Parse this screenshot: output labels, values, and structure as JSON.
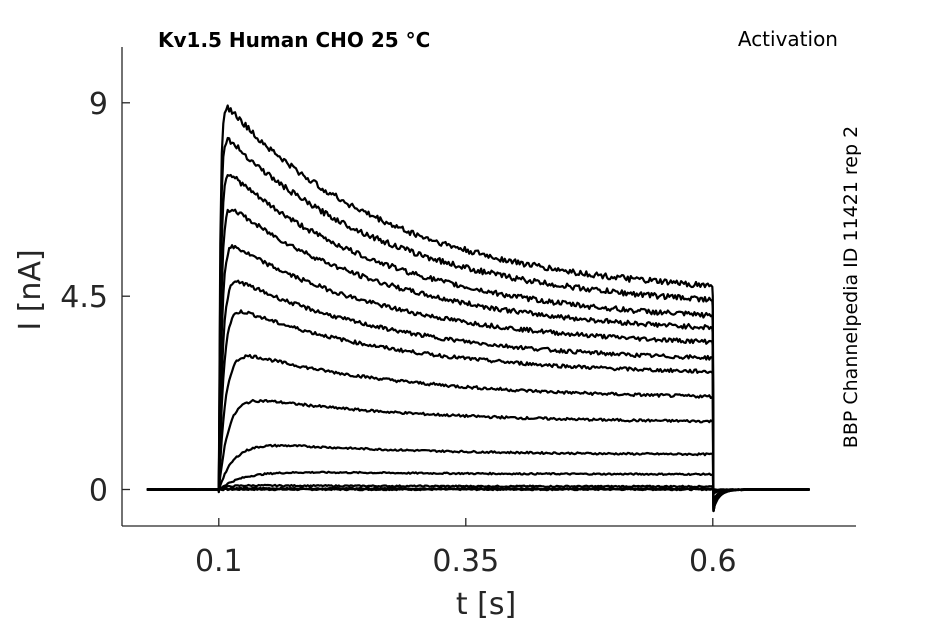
{
  "chart_data": {
    "type": "line",
    "title": "Kv1.5  Human  CHO  25 °C",
    "protocol_label": "Activation",
    "side_label": "BBP Channelpedia ID 11421 rep 2",
    "xlabel": "t [s]",
    "ylabel": "I [nA]",
    "xlim": [
      0.002,
      0.745
    ],
    "ylim": [
      -0.85,
      10.3
    ],
    "x_ticks": [
      0.1,
      0.35,
      0.6
    ],
    "x_tick_labels": [
      "0.1",
      "0.35",
      "0.6"
    ],
    "y_ticks": [
      0,
      4.5,
      9
    ],
    "y_tick_labels": [
      "0",
      "4.5",
      "9"
    ],
    "grid": false,
    "legend": "none",
    "pulse_start": 0.1,
    "pulse_end": 0.6,
    "baseline_start": 0.028,
    "trace_end": 0.7,
    "series": [
      {
        "peak": 0.0,
        "end": 0.0,
        "tau_act": 0.01,
        "tail": 0.0
      },
      {
        "peak": 0.03,
        "end": 0.02,
        "tau_act": 0.01,
        "tail": -0.05
      },
      {
        "peak": 0.1,
        "end": 0.07,
        "tau_act": 0.009,
        "tail": -0.1
      },
      {
        "peak": 0.45,
        "end": 0.35,
        "tau_act": 0.025,
        "tail": -0.25
      },
      {
        "peak": 1.15,
        "end": 0.8,
        "tau_act": 0.016,
        "tail": -0.35
      },
      {
        "peak": 2.25,
        "end": 1.55,
        "tau_act": 0.01,
        "tail": -0.4
      },
      {
        "peak": 3.35,
        "end": 2.1,
        "tau_act": 0.007,
        "tail": -0.42
      },
      {
        "peak": 4.4,
        "end": 2.65,
        "tau_act": 0.005,
        "tail": -0.45
      },
      {
        "peak": 5.1,
        "end": 2.95,
        "tau_act": 0.004,
        "tail": -0.47
      },
      {
        "peak": 5.9,
        "end": 3.3,
        "tau_act": 0.003,
        "tail": -0.48
      },
      {
        "peak": 6.8,
        "end": 3.6,
        "tau_act": 0.0025,
        "tail": -0.5
      },
      {
        "peak": 7.6,
        "end": 3.85,
        "tau_act": 0.002,
        "tail": -0.5
      },
      {
        "peak": 8.4,
        "end": 4.2,
        "tau_act": 0.0017,
        "tail": -0.5
      },
      {
        "peak": 9.15,
        "end": 4.5,
        "tau_act": 0.0015,
        "tail": -0.5
      }
    ]
  }
}
